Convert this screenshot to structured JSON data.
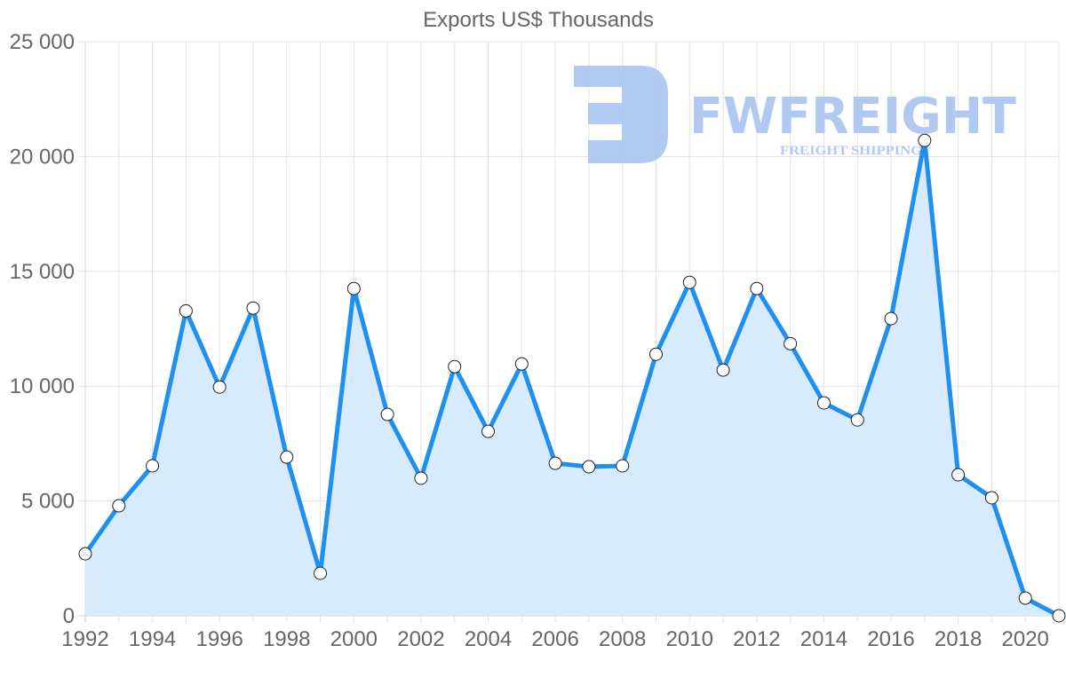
{
  "chart_data": {
    "type": "area",
    "title": "Exports US$ Thousands",
    "xlabel": "",
    "ylabel": "",
    "x": [
      1992,
      1993,
      1994,
      1995,
      1996,
      1997,
      1998,
      1999,
      2000,
      2001,
      2002,
      2003,
      2004,
      2005,
      2006,
      2007,
      2008,
      2009,
      2010,
      2011,
      2012,
      2013,
      2014,
      2015,
      2016,
      2017,
      2018,
      2019,
      2020,
      2021
    ],
    "series": [
      {
        "name": "Exports US$ Thousands",
        "values": [
          2700,
          4790,
          6530,
          13280,
          9960,
          13400,
          6910,
          1850,
          14250,
          8770,
          5990,
          10850,
          8030,
          10970,
          6640,
          6490,
          6530,
          11390,
          14520,
          10700,
          14250,
          11850,
          9270,
          8530,
          12940,
          20700,
          6140,
          5140,
          770,
          0
        ],
        "line_color": "#1f8ff0",
        "fill_color": "#d6eafc"
      }
    ],
    "x_tick_labels": [
      "1992",
      "1994",
      "1996",
      "1998",
      "2000",
      "2002",
      "2004",
      "2006",
      "2008",
      "2010",
      "2012",
      "2014",
      "2016",
      "2018",
      "2020"
    ],
    "y_tick_labels": [
      "0",
      "5 000",
      "10 000",
      "15 000",
      "20 000",
      "25 000"
    ],
    "y_ticks": [
      0,
      5000,
      10000,
      15000,
      20000,
      25000
    ],
    "ylim": [
      0,
      25000
    ],
    "grid": true,
    "legend": "none"
  },
  "watermark": {
    "brand": "FWFREIGHT",
    "tagline": "FREIGHT SHIPPING"
  }
}
